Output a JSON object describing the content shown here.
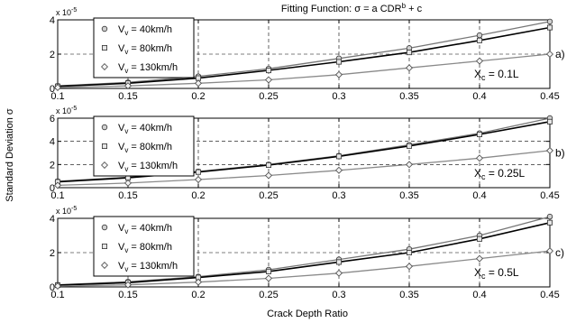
{
  "figure": {
    "title": "Fitting Function: σ = a CDR",
    "title_sup": "b",
    "title_tail": " + c",
    "ylabel": "Standard Deviation  σ",
    "xlabel": "Crack Depth Ratio"
  },
  "colors": {
    "axis": "#000000",
    "grid": "#000000",
    "series_40": "#777777",
    "series_80": "#000000",
    "series_130": "#8a8a8a"
  },
  "chart_data": [
    {
      "type": "line",
      "panel_label": "a)",
      "annotation_main": "X",
      "annotation_sub": "c",
      "annotation_tail": " = 0.1L",
      "scale_text": "x 10",
      "scale_exp": "-5",
      "x": [
        0.1,
        0.15,
        0.2,
        0.25,
        0.3,
        0.35,
        0.4,
        0.45
      ],
      "xticks": [
        "0.1",
        "0.15",
        "0.2",
        "0.25",
        "0.3",
        "0.35",
        "0.4",
        "0.45"
      ],
      "yticks": [
        0,
        2,
        4
      ],
      "yticks_text": [
        "0",
        "2",
        "4"
      ],
      "ylim": [
        0,
        4
      ],
      "grid": true,
      "legend_position": "top-left",
      "series": [
        {
          "name_main": "V",
          "name_sub": "v",
          "name_tail": " = 40km/h",
          "marker": "circle",
          "values": [
            0.15,
            0.35,
            0.7,
            1.15,
            1.75,
            2.35,
            3.1,
            3.9
          ]
        },
        {
          "name_main": "V",
          "name_sub": "v",
          "name_tail": " = 80km/h",
          "marker": "square",
          "values": [
            0.12,
            0.3,
            0.6,
            1.05,
            1.55,
            2.1,
            2.8,
            3.55
          ]
        },
        {
          "name_main": "V",
          "name_sub": "v",
          "name_tail": " = 130km/h",
          "marker": "diamond",
          "values": [
            0.05,
            0.15,
            0.3,
            0.5,
            0.8,
            1.2,
            1.6,
            2.0
          ]
        }
      ]
    },
    {
      "type": "line",
      "panel_label": "b)",
      "annotation_main": "X",
      "annotation_sub": "c",
      "annotation_tail": " = 0.25L",
      "scale_text": "x 10",
      "scale_exp": "-5",
      "x": [
        0.1,
        0.15,
        0.2,
        0.25,
        0.3,
        0.35,
        0.4,
        0.45
      ],
      "xticks": [
        "0.1",
        "0.15",
        "0.2",
        "0.25",
        "0.3",
        "0.35",
        "0.4",
        "0.45"
      ],
      "yticks": [
        0,
        2,
        4,
        6
      ],
      "yticks_text": [
        "0",
        "2",
        "4",
        "6"
      ],
      "ylim": [
        0,
        6
      ],
      "grid": true,
      "legend_position": "top-left",
      "series": [
        {
          "name_main": "V",
          "name_sub": "v",
          "name_tail": " = 40km/h",
          "marker": "circle",
          "values": [
            0.55,
            0.9,
            1.4,
            2.0,
            2.75,
            3.7,
            4.7,
            6.0
          ]
        },
        {
          "name_main": "V",
          "name_sub": "v",
          "name_tail": " = 80km/h",
          "marker": "square",
          "values": [
            0.5,
            0.85,
            1.35,
            1.95,
            2.7,
            3.6,
            4.6,
            5.7
          ]
        },
        {
          "name_main": "V",
          "name_sub": "v",
          "name_tail": " = 130km/h",
          "marker": "diamond",
          "values": [
            0.2,
            0.4,
            0.7,
            1.05,
            1.5,
            2.0,
            2.55,
            3.2
          ]
        }
      ]
    },
    {
      "type": "line",
      "panel_label": "c)",
      "annotation_main": "X",
      "annotation_sub": "c",
      "annotation_tail": " = 0.5L",
      "scale_text": "x 10",
      "scale_exp": "-5",
      "x": [
        0.1,
        0.15,
        0.2,
        0.25,
        0.3,
        0.35,
        0.4,
        0.45
      ],
      "xticks": [
        "0.1",
        "0.15",
        "0.2",
        "0.25",
        "0.3",
        "0.35",
        "0.4",
        "0.45"
      ],
      "yticks": [
        0,
        2,
        4
      ],
      "yticks_text": [
        "0",
        "2",
        "4"
      ],
      "ylim": [
        0,
        4
      ],
      "grid": true,
      "legend_position": "top-left",
      "series": [
        {
          "name_main": "V",
          "name_sub": "v",
          "name_tail": " = 40km/h",
          "marker": "circle",
          "values": [
            0.12,
            0.3,
            0.6,
            1.0,
            1.6,
            2.2,
            3.0,
            4.1
          ]
        },
        {
          "name_main": "V",
          "name_sub": "v",
          "name_tail": " = 80km/h",
          "marker": "square",
          "values": [
            0.1,
            0.25,
            0.55,
            0.9,
            1.45,
            2.0,
            2.8,
            3.75
          ]
        },
        {
          "name_main": "V",
          "name_sub": "v",
          "name_tail": " = 130km/h",
          "marker": "diamond",
          "values": [
            0.05,
            0.12,
            0.28,
            0.5,
            0.8,
            1.2,
            1.65,
            2.1
          ]
        }
      ]
    }
  ]
}
